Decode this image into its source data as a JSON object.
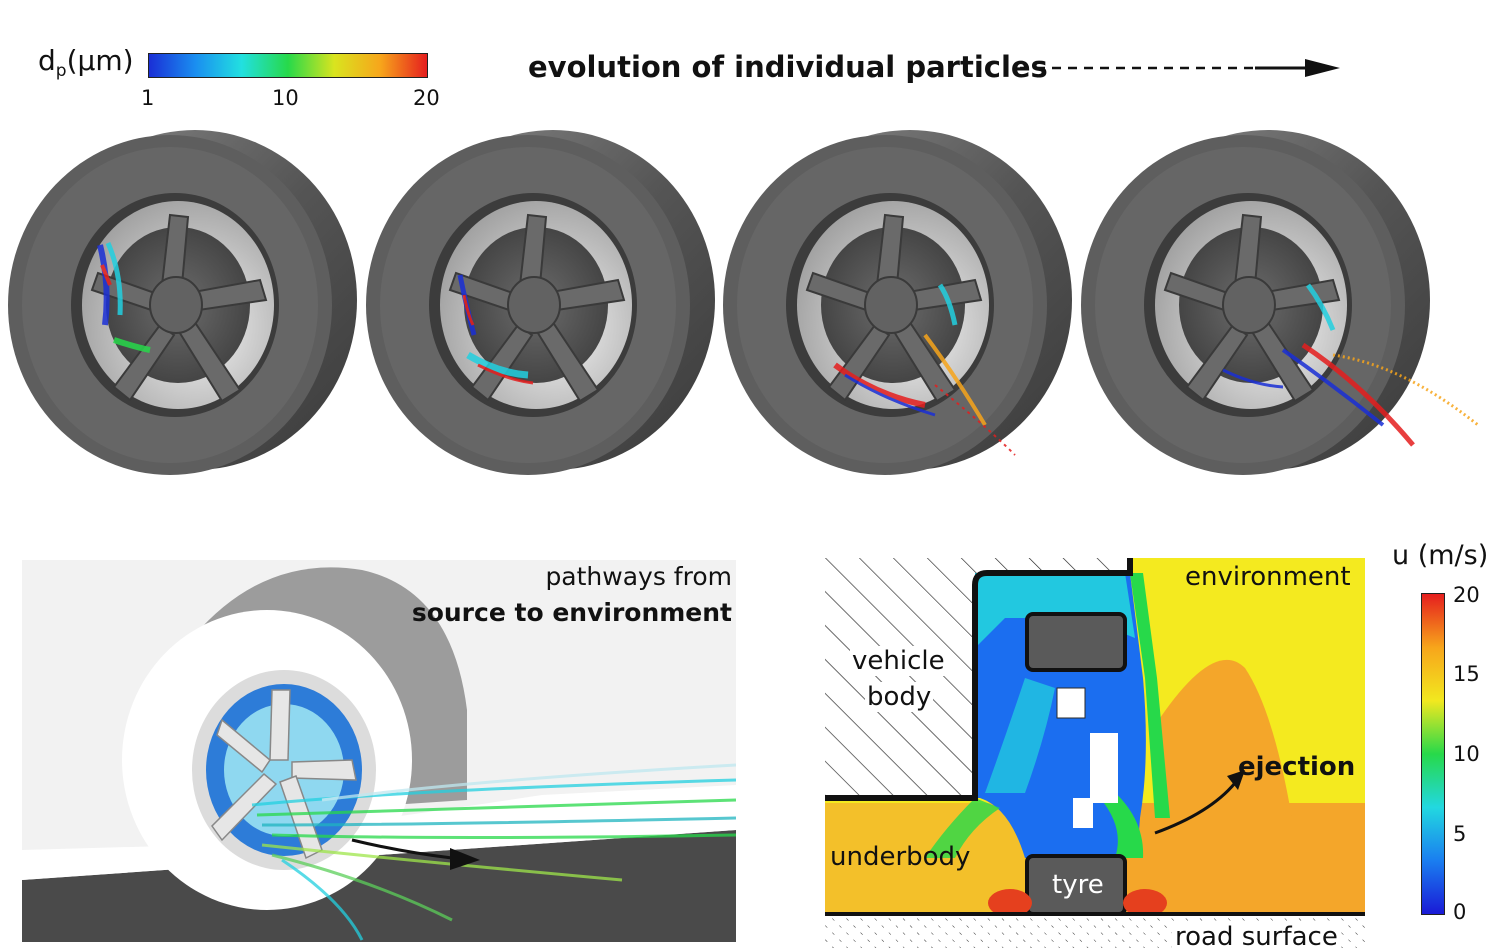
{
  "particle_legend": {
    "title_main": "d",
    "title_sub": "p",
    "title_unit": "(μm)",
    "ticks": [
      "1",
      "10",
      "20"
    ],
    "gradient": [
      "#1a2fd6",
      "#1a8ef0",
      "#22e0e0",
      "#27d94a",
      "#d9e41f",
      "#f7a51b",
      "#e51e1e"
    ]
  },
  "evolution": {
    "title": "evolution of individual particles"
  },
  "streamline_panel": {
    "caption_line1": "pathways from",
    "caption_line2": "source to environment"
  },
  "velocity_panel": {
    "labels": {
      "vehicle_body_1": "vehicle",
      "vehicle_body_2": "body",
      "environment": "environment",
      "underbody": "underbody",
      "ejection": "ejection",
      "tyre": "tyre",
      "road_surface": "road surface"
    },
    "legend": {
      "title": "u (m/s)",
      "ticks": [
        "20",
        "15",
        "10",
        "5",
        "0"
      ],
      "gradient": [
        "#e51e1e",
        "#f7a51b",
        "#f2e81f",
        "#27d94a",
        "#22d8e0",
        "#1a7ef0",
        "#1a1ad6"
      ]
    }
  },
  "colors": {
    "tyre_dark": "#3f3f3f",
    "tyre_mid": "#6b6b6b",
    "field_yellow": "#f4ea1f",
    "field_orange": "#f4a62a",
    "field_blue": "#1b6ef0"
  }
}
